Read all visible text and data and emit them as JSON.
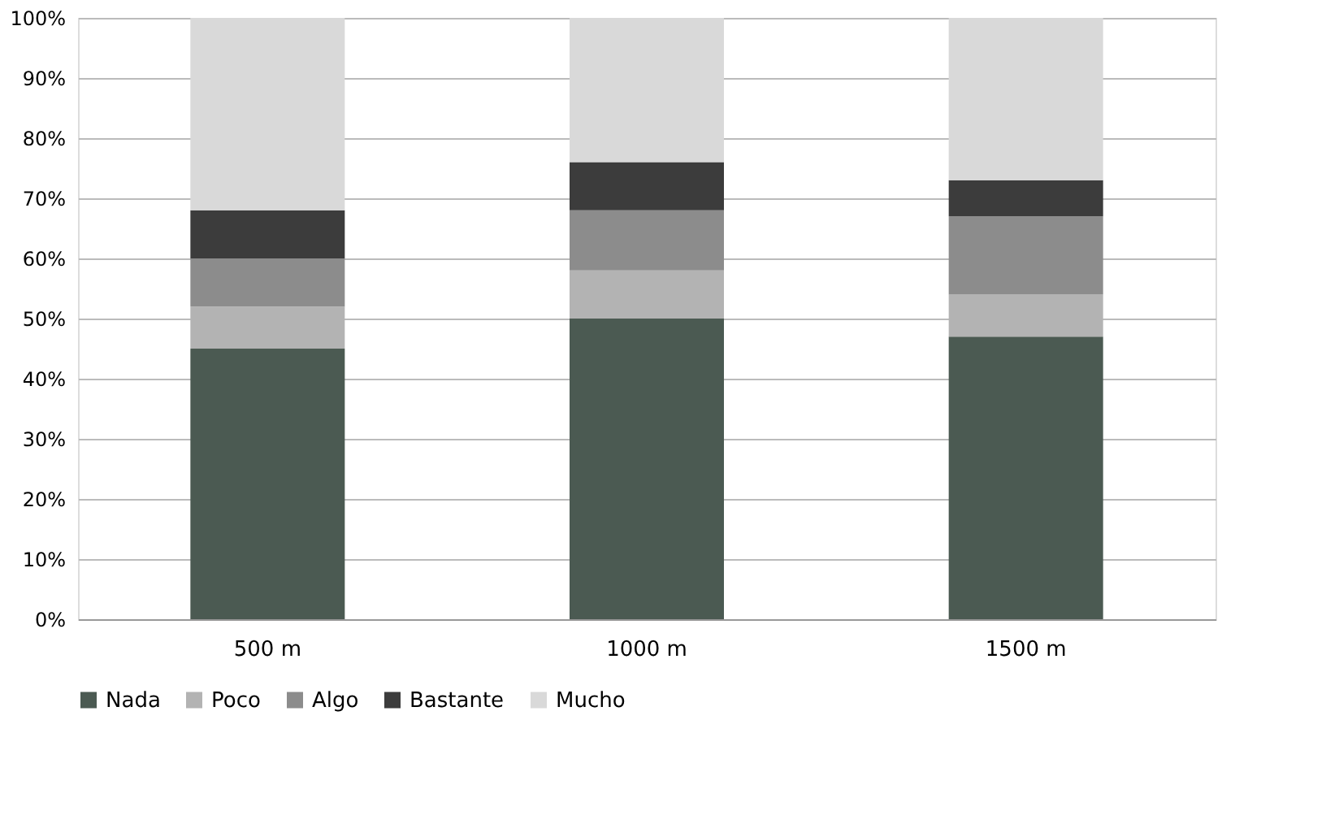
{
  "chart_data": {
    "type": "bar",
    "stacked": true,
    "categories": [
      "500 m",
      "1000 m",
      "1500 m"
    ],
    "series": [
      {
        "name": "Nada",
        "color": "#4b5a52",
        "values": [
          45,
          50,
          47
        ]
      },
      {
        "name": "Poco",
        "color": "#b3b3b3",
        "values": [
          7,
          8,
          7
        ]
      },
      {
        "name": "Algo",
        "color": "#8c8c8c",
        "values": [
          8,
          10,
          13
        ]
      },
      {
        "name": "Bastante",
        "color": "#3c3c3c",
        "values": [
          8,
          8,
          6
        ]
      },
      {
        "name": "Mucho",
        "color": "#d9d9d9",
        "values": [
          32,
          24,
          27
        ]
      }
    ],
    "ylim": [
      0,
      100
    ],
    "yticks": [
      {
        "value": 0,
        "label": "0%"
      },
      {
        "value": 10,
        "label": "10%"
      },
      {
        "value": 20,
        "label": "20%"
      },
      {
        "value": 30,
        "label": "30%"
      },
      {
        "value": 40,
        "label": "40%"
      },
      {
        "value": 50,
        "label": "50%"
      },
      {
        "value": 60,
        "label": "60%"
      },
      {
        "value": 70,
        "label": "70%"
      },
      {
        "value": 80,
        "label": "80%"
      },
      {
        "value": 90,
        "label": "90%"
      },
      {
        "value": 100,
        "label": "100%"
      }
    ],
    "grid": "y",
    "legend": "bottom"
  }
}
